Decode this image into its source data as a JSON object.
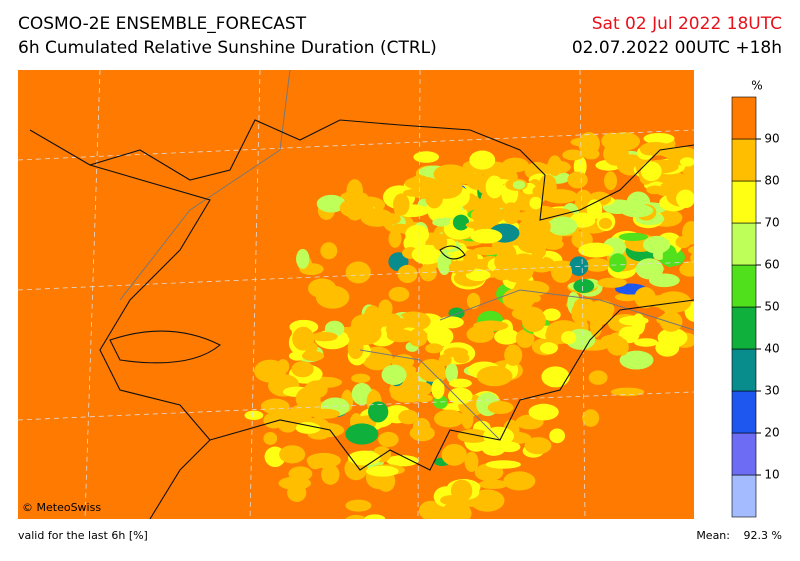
{
  "header": {
    "title": "COSMO-2E ENSEMBLE_FORECAST",
    "subtitle": "6h Cumulated Relative Sunshine Duration (CTRL)",
    "valid_time": "Sat 02 Jul 2022 18UTC",
    "run": "02.07.2022 00UTC +18h"
  },
  "map": {
    "credit": "© MeteoSwiss"
  },
  "colorbar": {
    "unit": "%",
    "range": [
      0,
      100
    ],
    "ticks": [
      10,
      20,
      30,
      40,
      50,
      60,
      70,
      80,
      90
    ],
    "colors": [
      "#a4bcff",
      "#6c6cf4",
      "#1e56f0",
      "#088c8c",
      "#10b03c",
      "#50e01c",
      "#beff5a",
      "#ffff14",
      "#ffbe00",
      "#ff7a00"
    ]
  },
  "footer": {
    "note": "valid for the last 6h [%]",
    "mean_label": "Mean:",
    "mean_value": "92.3 %"
  }
}
